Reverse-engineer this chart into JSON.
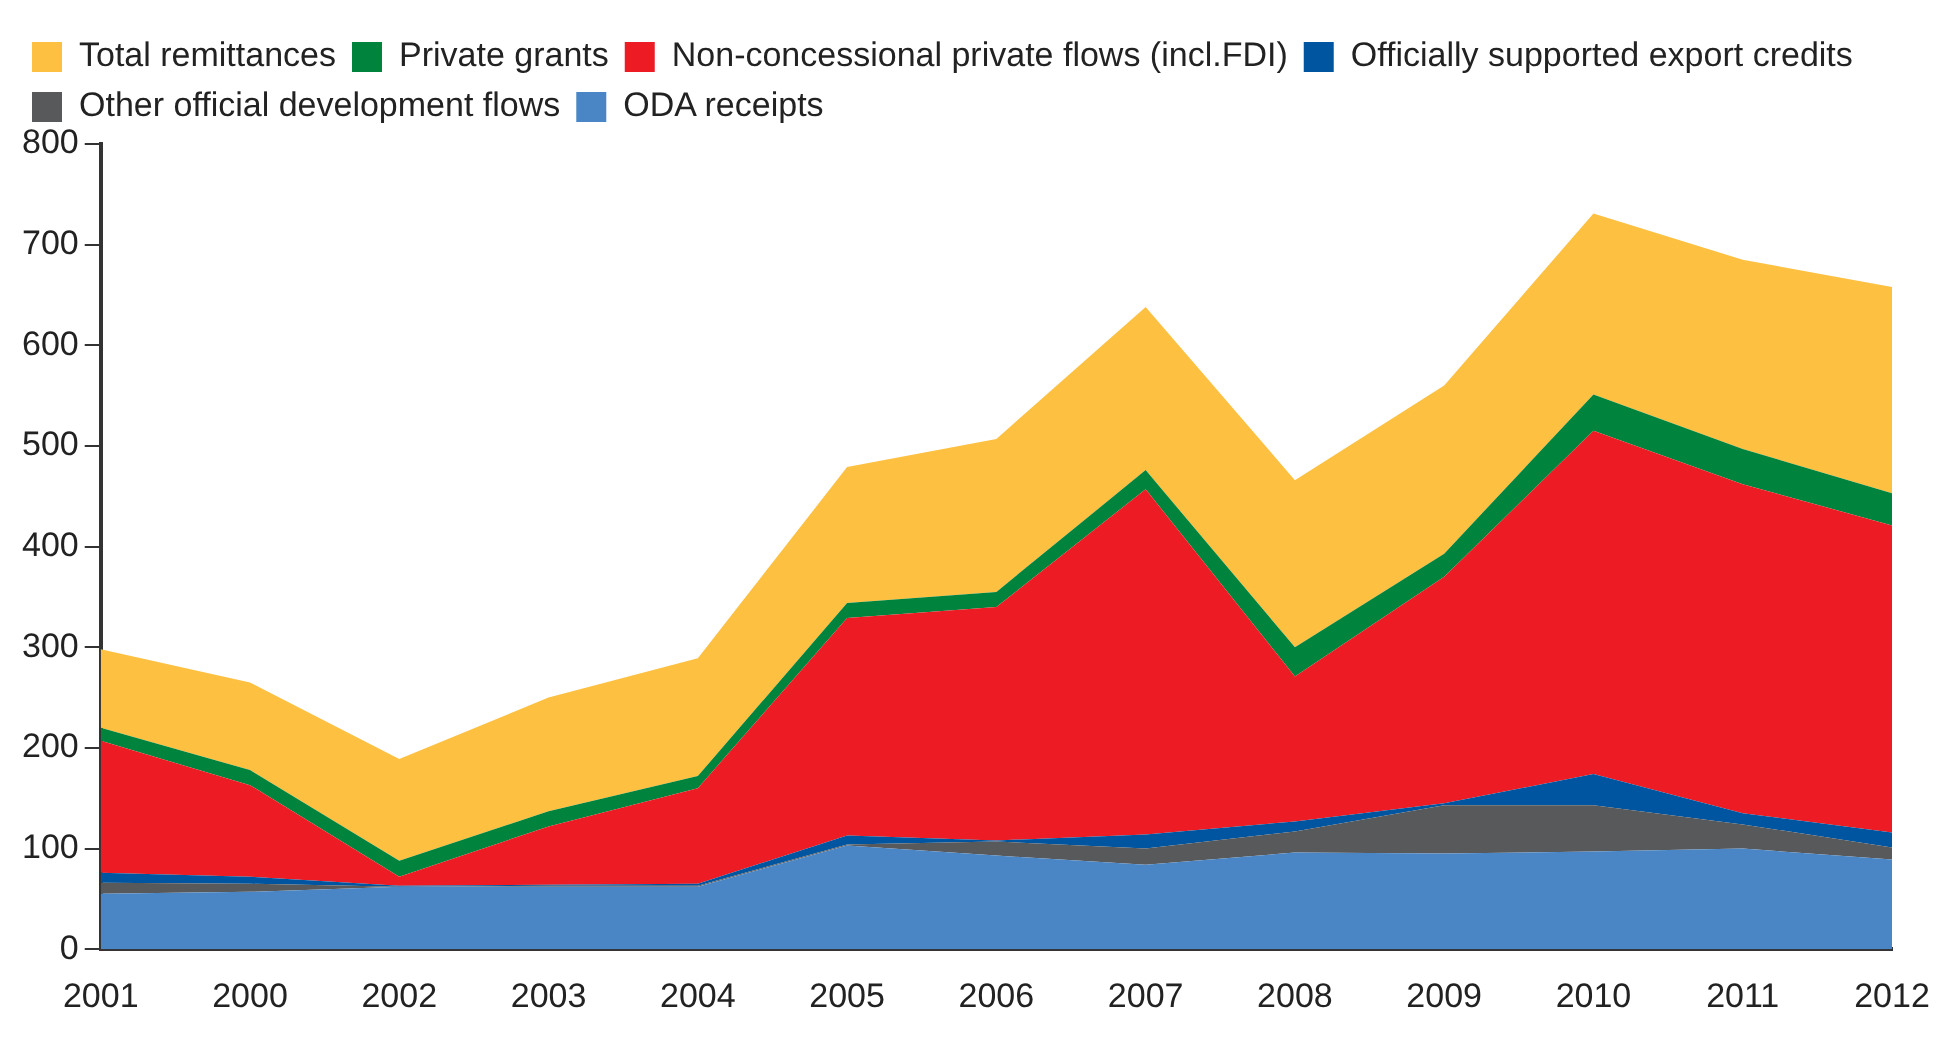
{
  "chart_data": {
    "type": "area",
    "stacked": true,
    "categories": [
      "2001",
      "2000",
      "2002",
      "2003",
      "2004",
      "2005",
      "2006",
      "2007",
      "2008",
      "2009",
      "2010",
      "2011",
      "2012"
    ],
    "series": [
      {
        "name": "ODA receipts",
        "color": "#4a86c5",
        "values": [
          55,
          57,
          62,
          62,
          62,
          103,
          93,
          84,
          96,
          95,
          97,
          100,
          89
        ]
      },
      {
        "name": "Other official development flows",
        "color": "#58595b",
        "values": [
          11,
          8,
          0,
          1,
          1,
          1,
          14,
          16,
          21,
          48,
          46,
          24,
          12
        ]
      },
      {
        "name": "Officially supported export credits",
        "color": "#0055a0",
        "values": [
          10,
          7,
          1,
          1,
          2,
          9,
          1,
          14,
          10,
          2,
          31,
          11,
          15
        ]
      },
      {
        "name": "Non-concessional private flows (incl.FDI)",
        "color": "#ed1c24",
        "values": [
          131,
          91,
          9,
          58,
          95,
          216,
          232,
          343,
          144,
          225,
          341,
          327,
          305
        ]
      },
      {
        "name": "Private grants",
        "color": "#00843d",
        "values": [
          13,
          15,
          16,
          15,
          12,
          15,
          15,
          19,
          29,
          23,
          36,
          35,
          32
        ]
      },
      {
        "name": "Total remittances",
        "color": "#fdc041",
        "values": [
          78,
          87,
          101,
          113,
          117,
          135,
          152,
          162,
          166,
          167,
          180,
          188,
          205
        ]
      }
    ],
    "ylim": [
      0,
      800
    ],
    "yticks": [
      0,
      100,
      200,
      300,
      400,
      500,
      600,
      700,
      800
    ],
    "grid": false,
    "legend": "top left"
  }
}
